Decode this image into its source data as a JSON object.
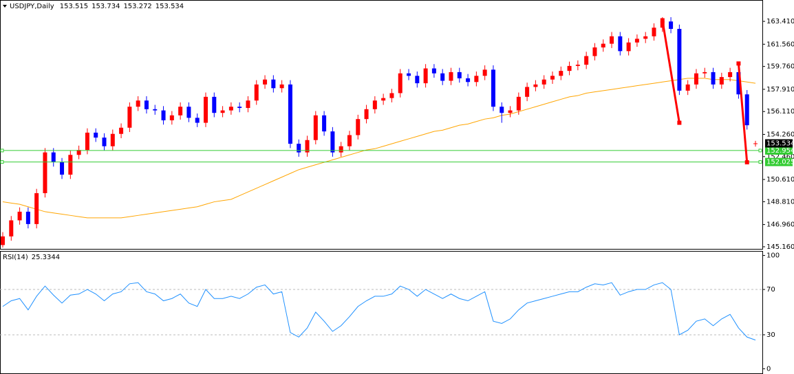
{
  "chart_data": [
    {
      "type": "candlestick",
      "title": "USDJPY,Daily",
      "up_color": "#ff0000",
      "down_color": "#0000ff",
      "open": [
        145.3,
        146.0,
        147.3,
        148.0,
        147.0,
        149.5,
        152.8,
        152.0,
        151.0,
        152.6,
        153.0,
        154.4,
        154.0,
        153.3,
        154.3,
        154.8,
        156.5,
        157.0,
        156.3,
        156.2,
        155.4,
        155.8,
        156.5,
        155.6,
        155.2,
        157.3,
        156.0,
        156.2,
        156.5,
        156.4,
        157.0,
        158.3,
        158.7,
        158.0,
        158.3,
        153.5,
        152.8,
        153.8,
        155.8,
        154.5,
        152.8,
        153.3,
        154.2,
        155.5,
        156.3,
        157.0,
        157.2,
        157.6,
        159.2,
        159.0,
        158.4,
        159.6,
        159.2,
        158.6,
        159.3,
        158.8,
        158.5,
        159.0,
        159.5,
        156.5,
        156.0,
        156.2,
        157.3,
        158.1,
        158.3,
        158.7,
        159.0,
        159.4,
        159.8,
        159.9,
        160.6,
        161.3,
        161.6,
        162.2,
        161.0,
        161.7,
        162.0,
        162.2,
        162.9,
        163.4,
        162.8,
        157.8,
        158.3,
        159.2,
        159.3,
        158.3,
        158.9,
        159.3,
        157.5,
        153.515
      ],
      "high": [
        146.35,
        147.65,
        148.35,
        148.35,
        149.85,
        153.15,
        153.15,
        152.35,
        152.95,
        153.35,
        154.75,
        154.75,
        154.35,
        154.65,
        155.15,
        156.85,
        157.35,
        157.35,
        156.65,
        156.55,
        156.15,
        156.85,
        156.85,
        155.95,
        157.65,
        157.65,
        156.55,
        156.85,
        156.85,
        157.35,
        158.65,
        159.05,
        159.05,
        158.65,
        158.65,
        153.85,
        154.15,
        156.15,
        156.15,
        154.85,
        153.65,
        154.55,
        155.85,
        156.65,
        157.35,
        157.55,
        157.95,
        159.55,
        159.55,
        159.35,
        159.95,
        159.95,
        159.55,
        159.65,
        159.65,
        159.15,
        159.35,
        159.85,
        159.85,
        156.85,
        156.55,
        157.65,
        158.45,
        158.65,
        159.05,
        159.35,
        159.75,
        160.15,
        160.25,
        160.95,
        161.65,
        161.95,
        162.55,
        162.55,
        162.05,
        162.35,
        162.55,
        163.25,
        163.75,
        163.75,
        163.15,
        158.65,
        159.55,
        159.65,
        159.65,
        159.25,
        159.65,
        159.65,
        157.85,
        153.734
      ],
      "low": [
        145.1,
        145.65,
        146.95,
        146.65,
        146.65,
        149.15,
        151.65,
        150.65,
        150.65,
        152.25,
        152.65,
        153.65,
        152.95,
        152.95,
        153.95,
        154.45,
        156.15,
        155.95,
        155.85,
        155.05,
        155.05,
        155.45,
        155.25,
        154.85,
        154.85,
        155.65,
        155.65,
        155.85,
        156.05,
        156.05,
        156.65,
        157.95,
        157.65,
        157.65,
        153.15,
        152.45,
        152.45,
        153.45,
        154.15,
        152.45,
        152.45,
        152.95,
        153.85,
        155.15,
        155.95,
        156.65,
        156.85,
        157.25,
        158.65,
        158.05,
        158.05,
        158.85,
        158.25,
        158.25,
        158.45,
        158.15,
        158.15,
        158.65,
        156.15,
        155.2,
        155.65,
        155.85,
        156.95,
        157.75,
        157.95,
        158.35,
        158.65,
        159.05,
        159.45,
        159.55,
        160.25,
        160.95,
        161.25,
        160.65,
        160.65,
        161.35,
        161.65,
        161.85,
        162.55,
        162.45,
        157.45,
        157.45,
        157.95,
        158.85,
        157.95,
        157.95,
        158.55,
        157.15,
        154.65,
        153.272
      ],
      "close": [
        146.0,
        147.3,
        148.0,
        147.0,
        149.5,
        152.8,
        152.0,
        151.0,
        152.6,
        153.0,
        154.4,
        154.0,
        153.3,
        154.3,
        154.8,
        156.5,
        157.0,
        156.3,
        156.2,
        155.4,
        155.8,
        156.5,
        155.6,
        155.2,
        157.3,
        156.0,
        156.2,
        156.5,
        156.4,
        157.0,
        158.3,
        158.7,
        158.0,
        158.3,
        153.5,
        152.8,
        153.8,
        155.8,
        154.5,
        152.8,
        153.3,
        154.2,
        155.5,
        156.3,
        157.0,
        157.2,
        157.6,
        159.2,
        159.0,
        158.4,
        159.6,
        159.2,
        158.6,
        159.3,
        158.8,
        158.5,
        159.0,
        159.5,
        156.5,
        156.0,
        156.2,
        157.3,
        158.1,
        158.3,
        158.7,
        159.0,
        159.4,
        159.8,
        159.9,
        160.6,
        161.3,
        161.6,
        162.2,
        161.0,
        161.7,
        162.0,
        162.2,
        162.9,
        163.4,
        162.8,
        157.8,
        158.3,
        159.2,
        159.3,
        158.3,
        158.9,
        159.3,
        157.5,
        155.0,
        153.534
      ],
      "overlays": [
        {
          "color": "#ffa500",
          "values": [
            148.8,
            148.7,
            148.6,
            148.4,
            148.2,
            148.0,
            147.9,
            147.8,
            147.7,
            147.6,
            147.5,
            147.5,
            147.5,
            147.5,
            147.5,
            147.6,
            147.7,
            147.8,
            147.9,
            148.0,
            148.1,
            148.2,
            148.3,
            148.4,
            148.6,
            148.8,
            148.9,
            149.0,
            149.3,
            149.6,
            149.9,
            150.2,
            150.5,
            150.8,
            151.1,
            151.4,
            151.6,
            151.8,
            152.0,
            152.2,
            152.4,
            152.6,
            152.8,
            153.0,
            153.1,
            153.3,
            153.5,
            153.7,
            153.9,
            154.1,
            154.3,
            154.5,
            154.6,
            154.8,
            155.0,
            155.1,
            155.3,
            155.5,
            155.6,
            155.8,
            155.9,
            156.1,
            156.3,
            156.5,
            156.7,
            156.9,
            157.1,
            157.3,
            157.4,
            157.6,
            157.7,
            157.8,
            157.9,
            158.0,
            158.1,
            158.2,
            158.3,
            158.4,
            158.5,
            158.6,
            158.7,
            158.8,
            158.8,
            158.8,
            158.7,
            158.7,
            158.7,
            158.6,
            158.5,
            158.4
          ]
        }
      ],
      "hlines": [
        {
          "value": 152.954,
          "color": "#33cc33"
        },
        {
          "value": 152.025,
          "color": "#33cc33"
        }
      ],
      "trendlines": [
        {
          "color": "#ff0000",
          "x": [
            78,
            80
          ],
          "y": [
            163.5,
            155.2
          ]
        },
        {
          "color": "#ff0000",
          "x": [
            87,
            88
          ],
          "y": [
            160.0,
            152.0
          ]
        }
      ],
      "ylim": [
        144.99,
        165.14
      ],
      "yticks": [
        {
          "value": 163.41,
          "label": "163.410"
        },
        {
          "value": 161.56,
          "label": "161.560"
        },
        {
          "value": 159.76,
          "label": "159.760"
        },
        {
          "value": 157.91,
          "label": "157.910"
        },
        {
          "value": 156.11,
          "label": "156.110"
        },
        {
          "value": 154.26,
          "label": "154.260"
        },
        {
          "value": 152.46,
          "label": "152.460"
        },
        {
          "value": 150.61,
          "label": "150.610"
        },
        {
          "value": 148.81,
          "label": "148.810"
        },
        {
          "value": 146.96,
          "label": "146.960"
        },
        {
          "value": 145.16,
          "label": "145.160"
        }
      ]
    },
    {
      "type": "line",
      "title": "RSI(14)",
      "color": "#1e90ff",
      "values": [
        55,
        60,
        62,
        52,
        64,
        73,
        65,
        58,
        65,
        66,
        70,
        66,
        60,
        66,
        68,
        75,
        76,
        68,
        66,
        60,
        62,
        66,
        58,
        55,
        70,
        62,
        62,
        64,
        62,
        66,
        72,
        74,
        66,
        68,
        32,
        28,
        36,
        50,
        42,
        33,
        38,
        46,
        55,
        60,
        64,
        64,
        66,
        73,
        70,
        64,
        70,
        66,
        62,
        66,
        62,
        60,
        64,
        68,
        42,
        40,
        44,
        52,
        58,
        60,
        62,
        64,
        66,
        68,
        68,
        72,
        75,
        74,
        76,
        65,
        68,
        70,
        70,
        74,
        76,
        70,
        30,
        34,
        42,
        44,
        38,
        44,
        48,
        36,
        28,
        25.3344
      ],
      "levels": [
        70,
        30
      ],
      "ylim": [
        -4,
        104
      ],
      "yticks": [
        100,
        70,
        30,
        0
      ]
    }
  ]
}
